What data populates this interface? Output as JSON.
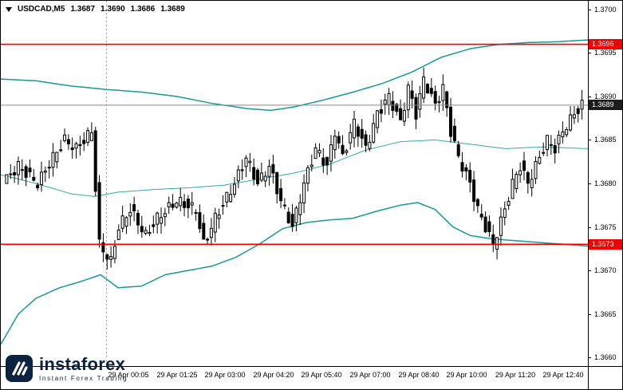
{
  "chart_header": {
    "symbol": "USDCAD,M5",
    "open": "1.3687",
    "high": "1.3690",
    "low": "1.3686",
    "close": "1.3689"
  },
  "watermark": {
    "brand": "instaforex",
    "tagline": "Instant Forex Trading"
  },
  "colors": {
    "candle": "#000000",
    "candle_bull_fill": "#ffffff",
    "band": "#189898",
    "band_mid": "#35aaaa",
    "level": "#f40000",
    "bid_line": "#888888",
    "badge_level_bg": "#f40000",
    "badge_current_bg": "#1c1c1c",
    "separator": "#999999",
    "axis_text": "#000000",
    "watermark_navy": "#0d2240"
  },
  "chart_data": {
    "type": "candlestick",
    "symbol": "USDCAD",
    "timeframe": "M5",
    "title": "USDCAD,M5 1.3687 1.3690 1.3686 1.3689",
    "grid": "off",
    "legend": "none",
    "ohlc_current": {
      "open": 1.3687,
      "high": 1.369,
      "low": 1.3686,
      "close": 1.3689
    },
    "current": {
      "price": 1.3689,
      "label": "1.3689"
    },
    "ylim": [
      1.3659,
      1.3701
    ],
    "y_ticks": [
      {
        "price": 1.37,
        "label": "1.3700"
      },
      {
        "price": 1.3695,
        "label": "1.3695"
      },
      {
        "price": 1.369,
        "label": "1.3690"
      },
      {
        "price": 1.3685,
        "label": "1.3685"
      },
      {
        "price": 1.368,
        "label": "1.3680"
      },
      {
        "price": 1.3675,
        "label": "1.3675"
      },
      {
        "price": 1.367,
        "label": "1.3670"
      },
      {
        "price": 1.3665,
        "label": "1.3665"
      },
      {
        "price": 1.366,
        "label": "1.3660"
      }
    ],
    "x_labels": [
      "29 Apr 00:05",
      "29 Apr 01:25",
      "29 Apr 03:00",
      "29 Apr 04:20",
      "29 Apr 05:40",
      "29 Apr 07:00",
      "29 Apr 08:40",
      "29 Apr 10:00",
      "29 Apr 11:20",
      "29 Apr 12:40"
    ],
    "levels": [
      {
        "price": 1.3696,
        "label": "1.3696",
        "kind": "resistance"
      },
      {
        "price": 1.3673,
        "label": "1.3673",
        "kind": "support"
      }
    ],
    "day_separator_frac": 0.18,
    "candle_count": 150,
    "price_path": [
      [
        0,
        1.368
      ],
      [
        4,
        1.3682
      ],
      [
        9,
        1.368
      ],
      [
        13,
        1.3683
      ],
      [
        16,
        1.3685
      ],
      [
        19,
        1.3684
      ],
      [
        23,
        1.3686
      ],
      [
        25,
        1.3673
      ],
      [
        28,
        1.3671
      ],
      [
        30,
        1.3675
      ],
      [
        33,
        1.3677
      ],
      [
        37,
        1.3674
      ],
      [
        40,
        1.3676
      ],
      [
        45,
        1.3678
      ],
      [
        50,
        1.3677
      ],
      [
        52,
        1.3673
      ],
      [
        55,
        1.3676
      ],
      [
        60,
        1.368
      ],
      [
        63,
        1.3683
      ],
      [
        66,
        1.368
      ],
      [
        69,
        1.3682
      ],
      [
        72,
        1.3678
      ],
      [
        75,
        1.3675
      ],
      [
        78,
        1.368
      ],
      [
        81,
        1.3684
      ],
      [
        84,
        1.3682
      ],
      [
        86,
        1.3686
      ],
      [
        88,
        1.3683
      ],
      [
        91,
        1.3687
      ],
      [
        94,
        1.3684
      ],
      [
        97,
        1.3688
      ],
      [
        100,
        1.369
      ],
      [
        103,
        1.3687
      ],
      [
        105,
        1.3691
      ],
      [
        107,
        1.3688
      ],
      [
        109,
        1.3692
      ],
      [
        112,
        1.3689
      ],
      [
        114,
        1.3691
      ],
      [
        116,
        1.3686
      ],
      [
        118,
        1.3683
      ],
      [
        121,
        1.368
      ],
      [
        123,
        1.3677
      ],
      [
        125,
        1.3675
      ],
      [
        127,
        1.3673
      ],
      [
        130,
        1.3677
      ],
      [
        132,
        1.368
      ],
      [
        134,
        1.3682
      ],
      [
        136,
        1.368
      ],
      [
        139,
        1.3683
      ],
      [
        141,
        1.3685
      ],
      [
        143,
        1.3684
      ],
      [
        145,
        1.3686
      ],
      [
        148,
        1.3688
      ],
      [
        150,
        1.3689
      ]
    ],
    "bands": {
      "upper": [
        [
          0,
          1.3692
        ],
        [
          0.06,
          1.36918
        ],
        [
          0.12,
          1.36912
        ],
        [
          0.18,
          1.36908
        ],
        [
          0.24,
          1.36905
        ],
        [
          0.3,
          1.369
        ],
        [
          0.36,
          1.36892
        ],
        [
          0.42,
          1.36886
        ],
        [
          0.46,
          1.36884
        ],
        [
          0.5,
          1.36888
        ],
        [
          0.55,
          1.36896
        ],
        [
          0.6,
          1.36905
        ],
        [
          0.65,
          1.36915
        ],
        [
          0.7,
          1.36928
        ],
        [
          0.75,
          1.36945
        ],
        [
          0.8,
          1.36955
        ],
        [
          0.85,
          1.3696
        ],
        [
          0.9,
          1.36962
        ],
        [
          0.95,
          1.36963
        ],
        [
          1.0,
          1.36965
        ]
      ],
      "middle": [
        [
          0,
          1.3681
        ],
        [
          0.06,
          1.368
        ],
        [
          0.12,
          1.36788
        ],
        [
          0.16,
          1.36785
        ],
        [
          0.2,
          1.3679
        ],
        [
          0.26,
          1.36793
        ],
        [
          0.32,
          1.36795
        ],
        [
          0.38,
          1.36798
        ],
        [
          0.44,
          1.36805
        ],
        [
          0.5,
          1.36812
        ],
        [
          0.56,
          1.36822
        ],
        [
          0.62,
          1.36838
        ],
        [
          0.68,
          1.36848
        ],
        [
          0.74,
          1.3685
        ],
        [
          0.8,
          1.36845
        ],
        [
          0.86,
          1.3684
        ],
        [
          0.92,
          1.36842
        ],
        [
          1.0,
          1.3684
        ]
      ],
      "lower": [
        [
          0,
          1.36615
        ],
        [
          0.03,
          1.3665
        ],
        [
          0.06,
          1.36668
        ],
        [
          0.1,
          1.3668
        ],
        [
          0.14,
          1.36688
        ],
        [
          0.17,
          1.36695
        ],
        [
          0.2,
          1.3668
        ],
        [
          0.24,
          1.36682
        ],
        [
          0.28,
          1.36695
        ],
        [
          0.32,
          1.367
        ],
        [
          0.36,
          1.36705
        ],
        [
          0.4,
          1.36715
        ],
        [
          0.44,
          1.3673
        ],
        [
          0.48,
          1.36748
        ],
        [
          0.52,
          1.36755
        ],
        [
          0.56,
          1.36758
        ],
        [
          0.6,
          1.3676
        ],
        [
          0.64,
          1.36768
        ],
        [
          0.68,
          1.36775
        ],
        [
          0.71,
          1.36778
        ],
        [
          0.74,
          1.3677
        ],
        [
          0.77,
          1.3675
        ],
        [
          0.8,
          1.3674
        ],
        [
          0.84,
          1.36736
        ],
        [
          0.88,
          1.36734
        ],
        [
          0.92,
          1.36732
        ],
        [
          0.96,
          1.3673
        ],
        [
          1.0,
          1.36728
        ]
      ]
    }
  }
}
